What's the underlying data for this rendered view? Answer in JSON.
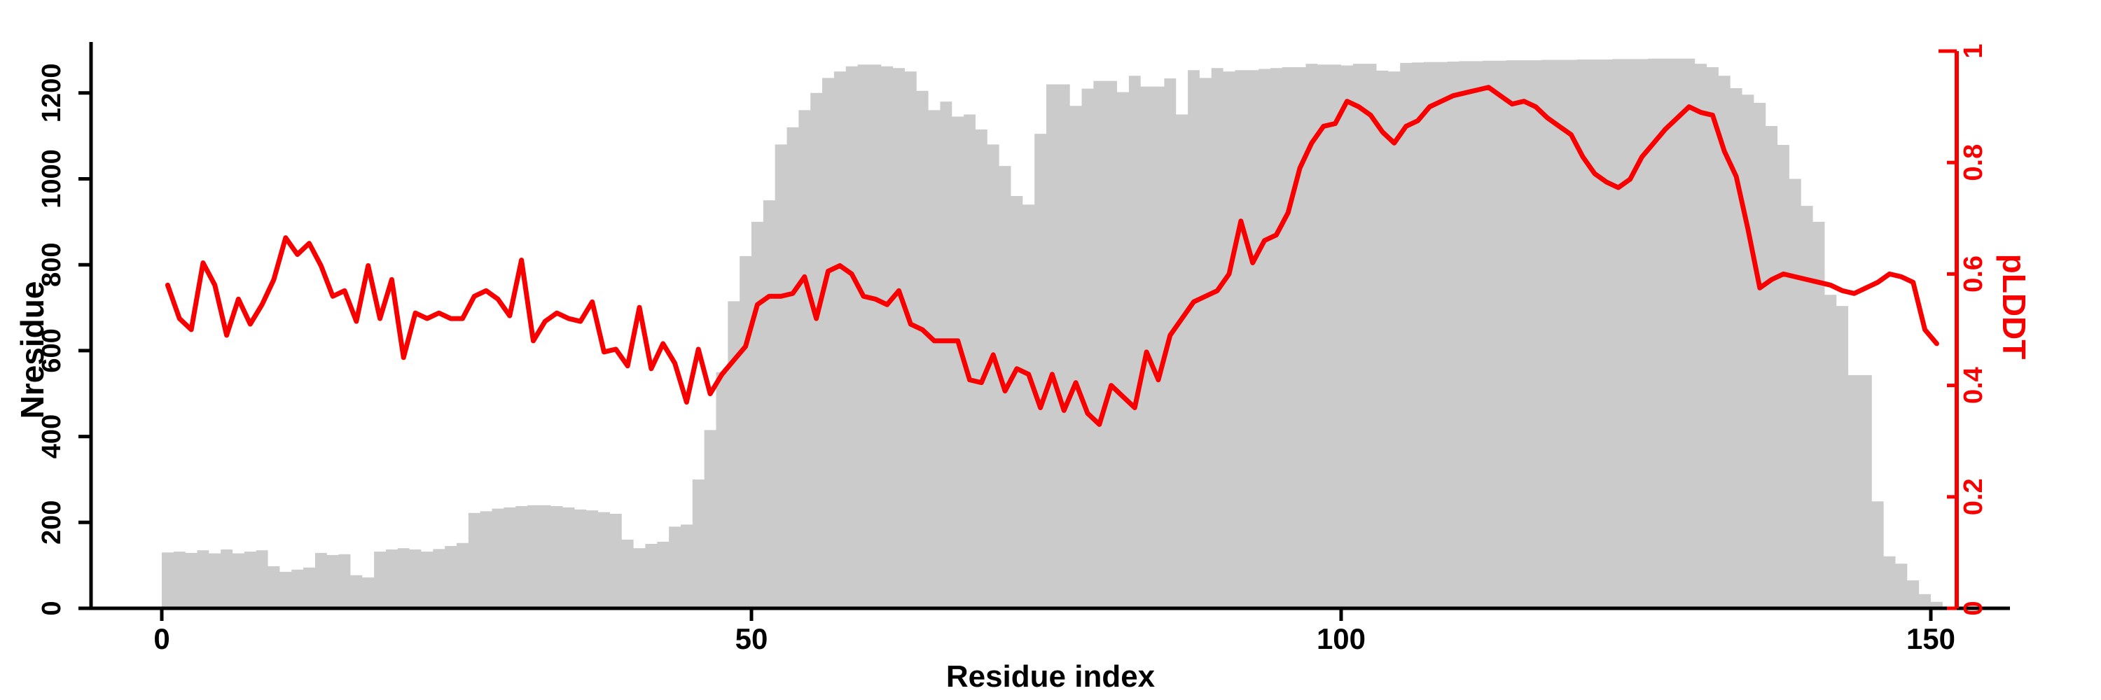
{
  "chart_data": {
    "type": "bar",
    "subtype": "dual-axis bar+line profile",
    "title": "",
    "xlabel": "Residue index",
    "ylabel_left": "Nresidue",
    "ylabel_right": "pLDDT",
    "x_tick_values": [
      0,
      50,
      100,
      150
    ],
    "x_tick_labels": [
      "0",
      "50",
      "100",
      "150"
    ],
    "y_left_tick_values": [
      0,
      200,
      400,
      600,
      800,
      1000,
      1200
    ],
    "y_left_tick_labels": [
      "0",
      "200",
      "400",
      "600",
      "800",
      "1000",
      "1200"
    ],
    "y_right_tick_values": [
      0,
      0.2,
      0.4,
      0.6,
      0.8,
      1
    ],
    "y_right_tick_labels": [
      "0",
      "0.2",
      "0.4",
      "0.6",
      "0.8",
      "1"
    ],
    "xlim": [
      0,
      151
    ],
    "ylim_left": [
      0,
      1320
    ],
    "ylim_right": [
      0,
      1
    ],
    "grid": false,
    "legend_position": "none",
    "bar_color": "#cbcbcb",
    "line_color": "#f80000",
    "axis_color": "#000000",
    "right_axis_color": "#f80000",
    "x": [
      1,
      2,
      3,
      4,
      5,
      6,
      7,
      8,
      9,
      10,
      11,
      12,
      13,
      14,
      15,
      16,
      17,
      18,
      19,
      20,
      21,
      22,
      23,
      24,
      25,
      26,
      27,
      28,
      29,
      30,
      31,
      32,
      33,
      34,
      35,
      36,
      37,
      38,
      39,
      40,
      41,
      42,
      43,
      44,
      45,
      46,
      47,
      48,
      49,
      50,
      51,
      52,
      53,
      54,
      55,
      56,
      57,
      58,
      59,
      60,
      61,
      62,
      63,
      64,
      65,
      66,
      67,
      68,
      69,
      70,
      71,
      72,
      73,
      74,
      75,
      76,
      77,
      78,
      79,
      80,
      81,
      82,
      83,
      84,
      85,
      86,
      87,
      88,
      89,
      90,
      91,
      92,
      93,
      94,
      95,
      96,
      97,
      98,
      99,
      100,
      101,
      102,
      103,
      104,
      105,
      106,
      107,
      108,
      109,
      110,
      111,
      112,
      113,
      114,
      115,
      116,
      117,
      118,
      119,
      120,
      121,
      122,
      123,
      124,
      125,
      126,
      127,
      128,
      129,
      130,
      131,
      132,
      133,
      134,
      135,
      136,
      137,
      138,
      139,
      140,
      141,
      142,
      143,
      144,
      145,
      146,
      147,
      148,
      149,
      150,
      151
    ],
    "series": [
      {
        "name": "Nresidue",
        "render": "bar",
        "axis": "left",
        "values": [
          130,
          132,
          129,
          135,
          128,
          137,
          128,
          132,
          135,
          98,
          85,
          90,
          95,
          129,
          124,
          126,
          77,
          72,
          132,
          137,
          140,
          137,
          132,
          138,
          145,
          152,
          222,
          226,
          232,
          235,
          238,
          240,
          240,
          238,
          235,
          230,
          228,
          224,
          220,
          160,
          140,
          150,
          155,
          190,
          195,
          300,
          415,
          550,
          715,
          820,
          900,
          950,
          1080,
          1120,
          1160,
          1200,
          1235,
          1250,
          1262,
          1266,
          1266,
          1262,
          1258,
          1250,
          1205,
          1160,
          1180,
          1145,
          1150,
          1115,
          1080,
          1030,
          960,
          940,
          1105,
          1220,
          1220,
          1170,
          1210,
          1228,
          1228,
          1202,
          1240,
          1215,
          1215,
          1234,
          1150,
          1253,
          1235,
          1258,
          1250,
          1253,
          1253,
          1256,
          1258,
          1260,
          1260,
          1268,
          1266,
          1266,
          1264,
          1268,
          1268,
          1252,
          1250,
          1270,
          1271,
          1272,
          1272,
          1273,
          1274,
          1274,
          1275,
          1275,
          1276,
          1276,
          1276,
          1277,
          1277,
          1277,
          1278,
          1278,
          1278,
          1279,
          1279,
          1279,
          1280,
          1280,
          1280,
          1280,
          1268,
          1260,
          1240,
          1211,
          1196,
          1177,
          1123,
          1079,
          1000,
          937,
          900,
          730,
          704,
          543,
          543,
          249,
          121,
          104,
          65,
          33,
          15
        ]
      },
      {
        "name": "pLDDT",
        "render": "line",
        "axis": "right",
        "values": [
          0.58,
          0.52,
          0.5,
          0.62,
          0.58,
          0.49,
          0.555,
          0.51,
          0.545,
          0.59,
          0.665,
          0.635,
          0.655,
          0.615,
          0.56,
          0.57,
          0.515,
          0.615,
          0.52,
          0.59,
          0.45,
          0.53,
          0.52,
          0.53,
          0.52,
          0.52,
          0.56,
          0.57,
          0.555,
          0.525,
          0.625,
          0.48,
          0.515,
          0.53,
          0.52,
          0.515,
          0.55,
          0.46,
          0.465,
          0.435,
          0.54,
          0.43,
          0.475,
          0.44,
          0.37,
          0.465,
          0.385,
          0.42,
          0.445,
          0.47,
          0.545,
          0.56,
          0.56,
          0.565,
          0.595,
          0.52,
          0.605,
          0.615,
          0.6,
          0.56,
          0.555,
          0.545,
          0.57,
          0.51,
          0.5,
          0.48,
          0.48,
          0.48,
          0.41,
          0.405,
          0.455,
          0.39,
          0.43,
          0.42,
          0.36,
          0.42,
          0.355,
          0.405,
          0.35,
          0.33,
          0.4,
          0.38,
          0.36,
          0.46,
          0.41,
          0.49,
          0.52,
          0.55,
          0.56,
          0.57,
          0.6,
          0.695,
          0.62,
          0.66,
          0.67,
          0.71,
          0.79,
          0.835,
          0.865,
          0.87,
          0.91,
          0.9,
          0.885,
          0.855,
          0.835,
          0.865,
          0.875,
          0.9,
          0.91,
          0.92,
          0.925,
          0.93,
          0.935,
          0.92,
          0.905,
          0.91,
          0.9,
          0.88,
          0.865,
          0.85,
          0.81,
          0.78,
          0.765,
          0.755,
          0.77,
          0.81,
          0.835,
          0.86,
          0.88,
          0.9,
          0.89,
          0.885,
          0.82,
          0.775,
          0.68,
          0.575,
          0.59,
          0.6,
          0.595,
          0.59,
          0.585,
          0.58,
          0.57,
          0.565,
          0.575,
          0.585,
          0.6,
          0.595,
          0.585,
          0.5,
          0.475
        ]
      }
    ]
  }
}
